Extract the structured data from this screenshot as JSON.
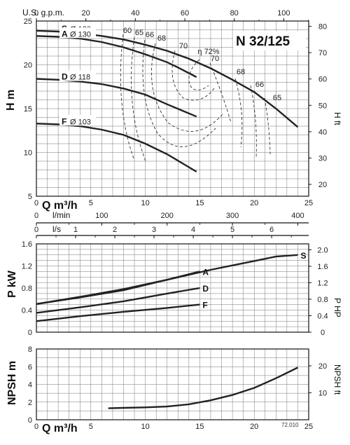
{
  "chart_data": [
    {
      "type": "line",
      "title": "N 32/125",
      "xlabel": "Q m³/h",
      "x_range": [
        0,
        25
      ],
      "x_ticks": [
        "0",
        "5",
        "10",
        "15",
        "20",
        "25"
      ],
      "ylabel": "H m",
      "ylim": [
        5,
        25
      ],
      "y_ticks": [
        "5",
        "10",
        "15",
        "20",
        "25"
      ],
      "y2label": "H ft",
      "y2_range": [
        15.5,
        82
      ],
      "y2_ticks": [
        "20",
        "30",
        "40",
        "50",
        "60",
        "70",
        "80"
      ],
      "top_axis_label": "U.S. g.p.m.",
      "top_axis_ticks": [
        "0",
        "20",
        "40",
        "60",
        "80",
        "100"
      ],
      "flow_axis_lmin_label": "l/min",
      "flow_axis_lmin_ticks": [
        "0",
        "100",
        "200",
        "300",
        "400"
      ],
      "flow_axis_ls_label": "l/s",
      "flow_axis_ls_ticks": [
        "0",
        "1",
        "2",
        "3",
        "4",
        "5",
        "6"
      ],
      "grid": true,
      "series": [
        {
          "name": "S",
          "diameter": "Ø 130",
          "x": [
            0,
            2,
            4,
            6,
            8,
            10,
            12,
            14,
            16,
            18,
            20,
            22,
            24
          ],
          "y": [
            23.9,
            23.8,
            23.6,
            23.3,
            22.9,
            22.3,
            21.6,
            20.7,
            19.6,
            18.3,
            16.9,
            15.0,
            12.9
          ]
        },
        {
          "name": "A",
          "diameter": "Ø 130",
          "x": [
            0,
            2,
            4,
            6,
            8,
            10,
            12,
            13,
            14.7
          ],
          "y": [
            23.3,
            23.2,
            23.0,
            22.6,
            22.0,
            21.2,
            20.3,
            19.7,
            18.6
          ]
        },
        {
          "name": "D",
          "diameter": "Ø 118",
          "x": [
            0,
            2,
            4,
            6,
            8,
            10,
            12,
            14.7
          ],
          "y": [
            18.4,
            18.3,
            18.1,
            17.8,
            17.3,
            16.6,
            15.5,
            14.1
          ]
        },
        {
          "name": "F",
          "diameter": "Ø 103",
          "x": [
            0,
            2,
            4,
            6,
            8,
            10,
            12,
            14.7
          ],
          "y": [
            13.3,
            13.2,
            13.0,
            12.6,
            12.0,
            11.0,
            9.8,
            7.8
          ]
        }
      ],
      "efficiency_labels": [
        "60",
        "65",
        "66",
        "68",
        "70",
        "η 72%",
        "70",
        "68",
        "66",
        "65"
      ]
    },
    {
      "type": "line",
      "xlabel": "",
      "x_range": [
        0,
        25
      ],
      "ylabel": "P kW",
      "ylim": [
        0,
        1.6
      ],
      "y_ticks": [
        "0",
        "0.4",
        "0.8",
        "1.2",
        "1.6"
      ],
      "y2label": "P HP",
      "y2_range": [
        0,
        2.145
      ],
      "y2_ticks": [
        "0",
        "0.4",
        "0.8",
        "1.2",
        "1.6",
        "2.0"
      ],
      "grid": true,
      "series": [
        {
          "name": "S",
          "x": [
            0,
            4,
            8,
            12,
            16,
            20,
            22,
            24
          ],
          "y": [
            0.51,
            0.64,
            0.78,
            0.95,
            1.13,
            1.29,
            1.37,
            1.4
          ]
        },
        {
          "name": "A",
          "x": [
            0,
            4,
            8,
            12,
            15
          ],
          "y": [
            0.51,
            0.63,
            0.76,
            0.95,
            1.1
          ]
        },
        {
          "name": "D",
          "x": [
            0,
            4,
            8,
            12,
            15
          ],
          "y": [
            0.35,
            0.45,
            0.56,
            0.7,
            0.8
          ]
        },
        {
          "name": "F",
          "x": [
            0,
            4,
            8,
            12,
            15
          ],
          "y": [
            0.2,
            0.29,
            0.37,
            0.44,
            0.5
          ]
        }
      ]
    },
    {
      "type": "line",
      "xlabel": "Q m³/h",
      "x_range": [
        0,
        25
      ],
      "x_ticks": [
        "0",
        "5",
        "10",
        "15",
        "20",
        "25"
      ],
      "ylabel": "NPSH m",
      "ylim": [
        0,
        8
      ],
      "y_ticks": [
        "0",
        "2",
        "4",
        "6",
        "8"
      ],
      "y2label": "NPSH ft",
      "y2_range": [
        0,
        26.25
      ],
      "y2_ticks": [
        "10",
        "20"
      ],
      "grid": true,
      "series": [
        {
          "x": [
            6.6,
            8,
            10,
            12,
            14,
            16,
            18,
            20,
            22,
            24
          ],
          "y": [
            1.3,
            1.35,
            1.4,
            1.5,
            1.75,
            2.2,
            2.8,
            3.6,
            4.7,
            5.9
          ]
        }
      ],
      "figure_code": "72.010"
    }
  ]
}
